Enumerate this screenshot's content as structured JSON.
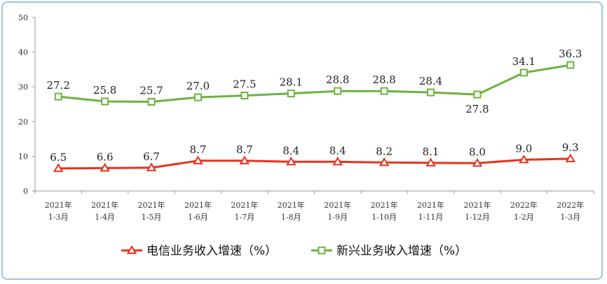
{
  "chart_data": {
    "type": "line",
    "categories": [
      [
        "2021年",
        "1-3月"
      ],
      [
        "2021年",
        "1-4月"
      ],
      [
        "2021年",
        "1-5月"
      ],
      [
        "2021年",
        "1-6月"
      ],
      [
        "2021年",
        "1-7月"
      ],
      [
        "2021年",
        "1-8月"
      ],
      [
        "2021年",
        "1-9月"
      ],
      [
        "2021年",
        "1-10月"
      ],
      [
        "2021年",
        "1-11月"
      ],
      [
        "2021年",
        "1-12月"
      ],
      [
        "2022年",
        "1-2月"
      ],
      [
        "2022年",
        "1-3月"
      ]
    ],
    "series": [
      {
        "name": "电信业务收入增速（%）",
        "color": "#e8321e",
        "marker": "triangle",
        "values": [
          6.5,
          6.6,
          6.7,
          8.7,
          8.7,
          8.4,
          8.4,
          8.2,
          8.1,
          8.0,
          9.0,
          9.3
        ],
        "labels": [
          "6.5",
          "6.6",
          "6.7",
          "8.7",
          "8.7",
          "8.4",
          "8.4",
          "8.2",
          "8.1",
          "8.0",
          "9.0",
          "9.3"
        ]
      },
      {
        "name": "新兴业务收入增速（%）",
        "color": "#6cb33e",
        "marker": "square",
        "values": [
          27.2,
          25.8,
          25.7,
          27.0,
          27.5,
          28.1,
          28.8,
          28.8,
          28.4,
          27.8,
          34.1,
          36.3
        ],
        "labels": [
          "27.2",
          "25.8",
          "25.7",
          "27.0",
          "27.5",
          "28.1",
          "28.8",
          "28.8",
          "28.4",
          "27.8",
          "34.1",
          "36.3"
        ]
      }
    ],
    "yticks": [
      "0",
      "10",
      "20",
      "30",
      "40",
      "50"
    ],
    "ylim": [
      0,
      50
    ],
    "grid": false,
    "legend_position": "bottom",
    "frame_color": "#9cc3e4"
  }
}
